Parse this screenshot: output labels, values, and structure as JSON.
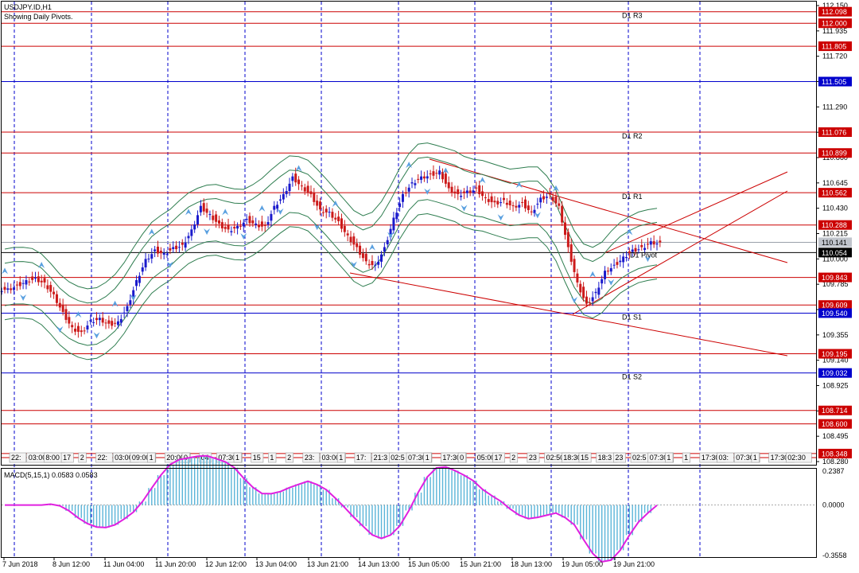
{
  "chart_title": "USDJPY.ID,H1",
  "subtitle": "Showing Daily Pivots.",
  "colors": {
    "candle_up": "#1a1acc",
    "candle_down": "#cc1a1a",
    "red_line": "#cc0000",
    "blue_line": "#0000cc",
    "grid_blue": "#0000cc",
    "band": "#2e7d4f",
    "arrow": "#5aa0e0",
    "macd_hist": "#5ab4d8",
    "macd_signal": "#e020e0"
  },
  "price_axis": {
    "ticks": [
      "112.150",
      "111.935",
      "111.720",
      "111.505",
      "111.290",
      "111.075",
      "110.860",
      "110.645",
      "110.430",
      "110.215",
      "110.000",
      "109.785",
      "109.570",
      "109.355",
      "109.140",
      "108.925",
      "108.710",
      "108.495",
      "108.280"
    ],
    "ylim": [
      108.28,
      112.15
    ]
  },
  "levels": [
    {
      "value": "112.098",
      "style": "red"
    },
    {
      "value": "112.000",
      "style": "red"
    },
    {
      "value": "111.805",
      "style": "red"
    },
    {
      "value": "111.505",
      "style": "blue"
    },
    {
      "value": "111.076",
      "style": "red"
    },
    {
      "value": "110.899",
      "style": "red"
    },
    {
      "value": "110.562",
      "style": "red"
    },
    {
      "value": "110.288",
      "style": "red"
    },
    {
      "value": "110.141",
      "style": "current"
    },
    {
      "value": "110.054",
      "style": "black"
    },
    {
      "value": "109.843",
      "style": "red"
    },
    {
      "value": "109.609",
      "style": "red"
    },
    {
      "value": "109.540",
      "style": "blue"
    },
    {
      "value": "109.195",
      "style": "red"
    },
    {
      "value": "109.032",
      "style": "blue"
    },
    {
      "value": "108.714",
      "style": "red"
    },
    {
      "value": "108.600",
      "style": "red"
    },
    {
      "value": "108.348",
      "style": "red"
    }
  ],
  "pivot_labels": [
    {
      "text": "D1 R3",
      "price": 112.098
    },
    {
      "text": "D1 R2",
      "price": 111.076
    },
    {
      "text": "D1 R1",
      "price": 110.562
    },
    {
      "text": "D1 Pivot",
      "price": 110.0
    },
    {
      "text": "D1 S1",
      "price": 109.54
    },
    {
      "text": "D1 S2",
      "price": 109.032
    }
  ],
  "session_tags": [
    "22:",
    "03:00",
    "8:00",
    "17",
    "2",
    "22:",
    "03:00",
    "09:00",
    "1",
    "20:00",
    "0",
    "04",
    "07:30",
    "1",
    "15",
    "1",
    "2",
    "23:",
    "03:00",
    "1",
    "17:",
    "21:3",
    "02:5",
    "07:30",
    "1",
    "17:30",
    "0",
    "05:00",
    "17",
    "2",
    "23",
    "02:50",
    "18:30",
    "15",
    "18:3",
    "23",
    "02:5",
    "07:30",
    "1",
    "1",
    "17:30",
    "03:",
    "07:30",
    "1",
    "17:30",
    "02:30"
  ],
  "time_axis": [
    "7 Jun 2018",
    "8 Jun 12:00",
    "11 Jun 04:00",
    "11 Jun 20:00",
    "12 Jun 12:00",
    "13 Jun 04:00",
    "13 Jun 21:00",
    "14 Jun 13:00",
    "15 Jun 05:00",
    "15 Jun 21:00",
    "18 Jun 13:00",
    "19 Jun 05:00",
    "19 Jun 21:00"
  ],
  "macd": {
    "label": "MACD(5,15,1) 0.0583 0.0583",
    "ticks": [
      "0.2387",
      "0.0000",
      "-0.3558"
    ],
    "ylim": [
      -0.3558,
      0.2387
    ]
  },
  "chart_data": {
    "type": "line",
    "title": "USDJPY.ID,H1",
    "subtitle": "Showing Daily Pivots.",
    "series": [
      {
        "values": [
          109.75,
          109.78,
          109.82,
          109.84,
          109.8,
          109.7,
          109.55,
          109.42,
          109.38,
          109.48,
          109.5,
          109.45,
          109.47,
          109.6,
          109.82,
          110.0,
          110.08,
          110.05,
          110.1,
          110.12,
          110.25,
          110.45,
          110.38,
          110.3,
          110.25,
          110.28,
          110.34,
          110.3,
          110.28,
          110.45,
          110.55,
          110.7,
          110.62,
          110.55,
          110.42,
          110.4,
          110.32,
          110.2,
          110.1,
          109.98,
          109.95,
          110.1,
          110.35,
          110.55,
          110.65,
          110.7,
          110.72,
          110.75,
          110.6,
          110.55,
          110.58,
          110.6,
          110.52,
          110.48,
          110.5,
          110.45,
          110.48,
          110.4,
          110.52,
          110.55,
          110.45,
          110.1,
          109.8,
          109.62,
          109.72,
          109.9,
          109.95,
          110.02,
          110.08,
          110.1,
          110.15,
          110.14
        ]
      }
    ]
  }
}
